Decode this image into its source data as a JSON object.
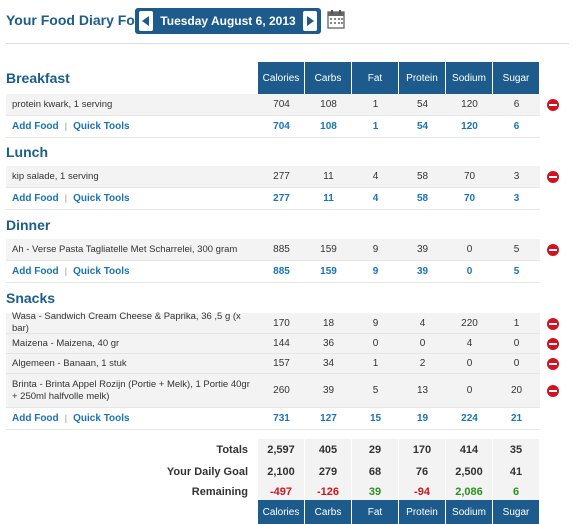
{
  "header": {
    "title": "Your Food Diary For:",
    "date": "Tuesday August 6, 2013"
  },
  "columns": [
    "Calories",
    "Carbs",
    "Fat",
    "Protein",
    "Sodium",
    "Sugar"
  ],
  "actions": {
    "add_food": "Add Food",
    "quick_tools": "Quick Tools",
    "separator": "|"
  },
  "meals": {
    "breakfast": {
      "title": "Breakfast",
      "items": [
        {
          "name": "protein kwark, 1 serving",
          "values": [
            "704",
            "108",
            "1",
            "54",
            "120",
            "6"
          ]
        }
      ],
      "totals": [
        "704",
        "108",
        "1",
        "54",
        "120",
        "6"
      ]
    },
    "lunch": {
      "title": "Lunch",
      "items": [
        {
          "name": "kip salade, 1 serving",
          "values": [
            "277",
            "11",
            "4",
            "58",
            "70",
            "3"
          ]
        }
      ],
      "totals": [
        "277",
        "11",
        "4",
        "58",
        "70",
        "3"
      ]
    },
    "dinner": {
      "title": "Dinner",
      "items": [
        {
          "name": "Ah - Verse Pasta Tagliatelle Met Scharrelei, 300 gram",
          "values": [
            "885",
            "159",
            "9",
            "39",
            "0",
            "5"
          ]
        }
      ],
      "totals": [
        "885",
        "159",
        "9",
        "39",
        "0",
        "5"
      ]
    },
    "snacks": {
      "title": "Snacks",
      "items": [
        {
          "name": "Wasa - Sandwich Cream Cheese & Paprika, 36 ,5 g (x bar)",
          "values": [
            "170",
            "18",
            "9",
            "4",
            "220",
            "1"
          ]
        },
        {
          "name": "Maizena - Maizena, 40 gr",
          "values": [
            "144",
            "36",
            "0",
            "0",
            "4",
            "0"
          ]
        },
        {
          "name": "Algemeen - Banaan, 1 stuk",
          "values": [
            "157",
            "34",
            "1",
            "2",
            "0",
            "0"
          ]
        },
        {
          "name": "Brinta - Brinta Appel Rozijn (Portie + Melk), 1 Portie 40gr + 250ml halfvolle melk)",
          "values": [
            "260",
            "39",
            "5",
            "13",
            "0",
            "20"
          ]
        }
      ],
      "totals": [
        "731",
        "127",
        "15",
        "19",
        "224",
        "21"
      ]
    }
  },
  "summary": {
    "totals": {
      "label": "Totals",
      "values": [
        "2,597",
        "405",
        "29",
        "170",
        "414",
        "35"
      ]
    },
    "goal": {
      "label": "Your Daily Goal",
      "values": [
        "2,100",
        "279",
        "68",
        "76",
        "2,500",
        "41"
      ]
    },
    "remaining": {
      "label": "Remaining",
      "values": [
        "-497",
        "-126",
        "39",
        "-94",
        "2,086",
        "6"
      ]
    }
  },
  "colors": {
    "brand": "#1c5b8c",
    "link": "#1b73b5",
    "negative": "#d0131d",
    "positive": "#2c8f1e"
  },
  "icons": {
    "prev": "chevron-left-icon",
    "next": "chevron-right-icon",
    "calendar": "calendar-icon",
    "delete": "delete-icon"
  }
}
